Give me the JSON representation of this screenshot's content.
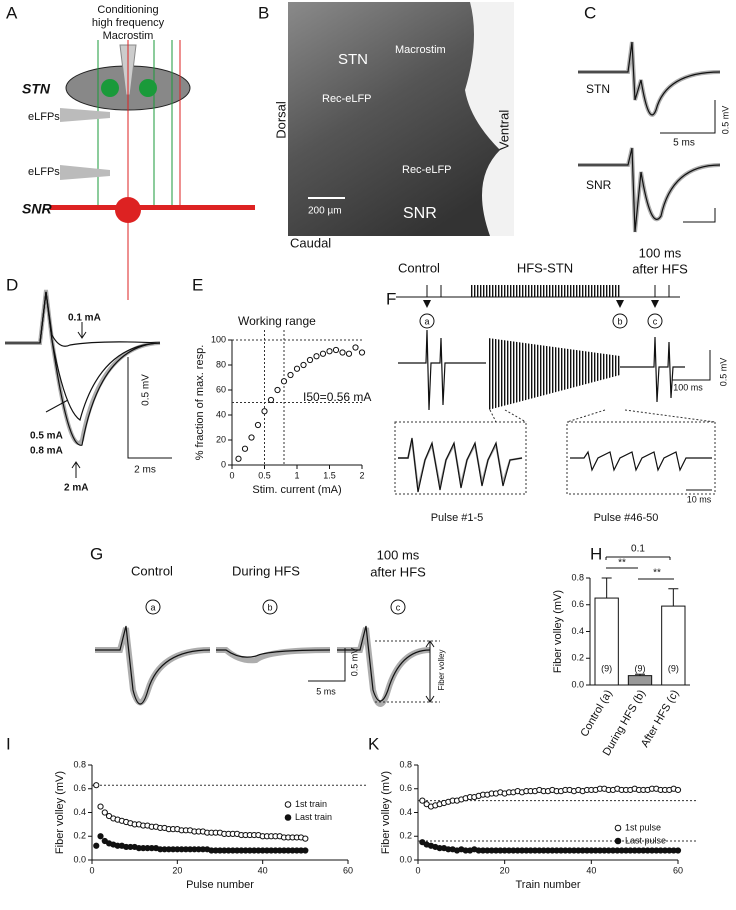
{
  "panels": {
    "A": {
      "label": "A",
      "title": [
        "Conditioning",
        "high frequency",
        "Macrostim"
      ],
      "stn": "STN",
      "elfp1": "eLFPs",
      "elfp2": "eLFPs",
      "snr": "SNR"
    },
    "B": {
      "label": "B",
      "stn": "STN",
      "macrostim": "Macrostim",
      "rec1": "Rec-eLFP",
      "dorsal": "Dorsal",
      "ventral": "Ventral",
      "rec2": "Rec-eLFP",
      "scale": "200 µm",
      "snr": "SNR",
      "caudal": "Caudal"
    },
    "C": {
      "label": "C",
      "stn": "STN",
      "mv": "0.5 mV",
      "ms": "5 ms",
      "snr": "SNR"
    },
    "D": {
      "label": "D",
      "i1": "0.1 mA",
      "i2": "0.5 mA",
      "i3": "0.8 mA",
      "i4": "2 mA",
      "mv": "0.5 mV",
      "ms": "2 ms"
    },
    "E": {
      "label": "E",
      "working": "Working range",
      "i50": "I50=0.56 mA"
    },
    "F": {
      "label": "F",
      "control": "Control",
      "hfs": "HFS-STN",
      "after": [
        "100 ms",
        "after HFS"
      ],
      "a": "a",
      "b": "b",
      "c": "c",
      "mv": "0.5 mV",
      "ms": "100 ms",
      "pulse1": "Pulse #1-5",
      "pulse2": "Pulse #46-50",
      "ms2": "10 ms"
    },
    "G": {
      "label": "G",
      "control": "Control",
      "during": "During HFS",
      "after": [
        "100 ms",
        "after HFS"
      ],
      "a": "a",
      "b": "b",
      "c": "c",
      "mv": "0.5 mV",
      "ms": "5 ms",
      "fv": "Fiber volley"
    },
    "H": {
      "label": "H",
      "p": "0.1",
      "s1": "**",
      "s2": "**"
    },
    "I": {
      "label": "I"
    },
    "K": {
      "label": "K"
    }
  },
  "chart_data": [
    {
      "type": "scatter",
      "xlabel": "Stim. current (mA)",
      "ylabel": "% fraction of max. resp.",
      "x": [
        0.1,
        0.2,
        0.3,
        0.4,
        0.5,
        0.6,
        0.7,
        0.8,
        0.9,
        1.0,
        1.1,
        1.2,
        1.3,
        1.4,
        1.5,
        1.6,
        1.7,
        1.8,
        1.9,
        2.0
      ],
      "series": [
        {
          "color": "#111",
          "marker": "open",
          "values": [
            5,
            13,
            22,
            32,
            43,
            52,
            60,
            67,
            72,
            77,
            80,
            84,
            87,
            89,
            91,
            92,
            90,
            89,
            94,
            90
          ]
        }
      ],
      "xlim": [
        0,
        2
      ],
      "xticks": [
        0,
        0.5,
        1,
        1.5,
        2
      ],
      "ylim": [
        0,
        100
      ],
      "yticks": [
        0,
        20,
        40,
        60,
        80,
        100
      ],
      "hlines": [
        50,
        100
      ],
      "vlines": [
        0.5,
        0.8
      ]
    },
    {
      "type": "bar",
      "ylabel": "Fiber volley (mV)",
      "categories": [
        "Control (a)",
        "During HFS (b)",
        "After HFS (c)"
      ],
      "values": [
        0.65,
        0.07,
        0.59
      ],
      "errors": [
        0.15,
        0.01,
        0.13
      ],
      "colors": [
        "#ffffff",
        "#999999",
        "#ffffff"
      ],
      "n_labels": [
        "(9)",
        "(9)",
        "(9)"
      ],
      "ylim": [
        0,
        0.8
      ],
      "yticks": [
        {
          "value": 0,
          "label": "0.0"
        },
        0.2,
        0.4,
        0.6,
        0.8
      ]
    },
    {
      "type": "scatter",
      "xlabel": "Pulse number",
      "ylabel": "Fiber volley (mV)",
      "legend": "right",
      "x": [
        1,
        2,
        3,
        4,
        5,
        6,
        7,
        8,
        9,
        10,
        11,
        12,
        13,
        14,
        15,
        16,
        17,
        18,
        19,
        20,
        21,
        22,
        23,
        24,
        25,
        26,
        27,
        28,
        29,
        30,
        31,
        32,
        33,
        34,
        35,
        36,
        37,
        38,
        39,
        40,
        41,
        42,
        43,
        44,
        45,
        46,
        47,
        48,
        49,
        50
      ],
      "series": [
        {
          "name": "1st train",
          "color": "#111",
          "marker": "open",
          "values": [
            0.63,
            0.45,
            0.4,
            0.37,
            0.35,
            0.34,
            0.33,
            0.32,
            0.31,
            0.3,
            0.3,
            0.29,
            0.29,
            0.28,
            0.28,
            0.27,
            0.27,
            0.26,
            0.26,
            0.26,
            0.25,
            0.25,
            0.25,
            0.24,
            0.24,
            0.24,
            0.23,
            0.23,
            0.23,
            0.23,
            0.22,
            0.22,
            0.22,
            0.22,
            0.21,
            0.21,
            0.21,
            0.21,
            0.21,
            0.2,
            0.2,
            0.2,
            0.2,
            0.2,
            0.19,
            0.19,
            0.19,
            0.19,
            0.19,
            0.18
          ]
        },
        {
          "name": "Last train",
          "color": "#111",
          "marker": "filled",
          "values": [
            0.12,
            0.2,
            0.16,
            0.14,
            0.13,
            0.12,
            0.12,
            0.11,
            0.11,
            0.11,
            0.1,
            0.1,
            0.1,
            0.1,
            0.1,
            0.09,
            0.09,
            0.09,
            0.09,
            0.09,
            0.09,
            0.09,
            0.09,
            0.09,
            0.09,
            0.09,
            0.09,
            0.08,
            0.08,
            0.08,
            0.08,
            0.08,
            0.08,
            0.08,
            0.08,
            0.08,
            0.08,
            0.08,
            0.08,
            0.08,
            0.08,
            0.08,
            0.08,
            0.08,
            0.08,
            0.08,
            0.08,
            0.08,
            0.08,
            0.08
          ]
        }
      ],
      "xlim": [
        0,
        60
      ],
      "xticks": [
        0,
        20,
        40,
        60
      ],
      "ylim": [
        0,
        0.8
      ],
      "yticks": [
        {
          "value": 0,
          "label": "0.0"
        },
        0.2,
        0.4,
        0.6,
        0.8
      ],
      "hlines": [
        0.63
      ]
    },
    {
      "type": "scatter",
      "xlabel": "Train number",
      "ylabel": "Fiber volley (mV)",
      "legend": "lower right",
      "x": [
        1,
        2,
        3,
        4,
        5,
        6,
        7,
        8,
        9,
        10,
        11,
        12,
        13,
        14,
        15,
        16,
        17,
        18,
        19,
        20,
        21,
        22,
        23,
        24,
        25,
        26,
        27,
        28,
        29,
        30,
        31,
        32,
        33,
        34,
        35,
        36,
        37,
        38,
        39,
        40,
        41,
        42,
        43,
        44,
        45,
        46,
        47,
        48,
        49,
        50,
        51,
        52,
        53,
        54,
        55,
        56,
        57,
        58,
        59,
        60
      ],
      "series": [
        {
          "name": "1st pulse",
          "color": "#111",
          "marker": "open",
          "values": [
            0.5,
            0.47,
            0.45,
            0.46,
            0.47,
            0.48,
            0.49,
            0.5,
            0.5,
            0.51,
            0.52,
            0.53,
            0.53,
            0.54,
            0.55,
            0.55,
            0.56,
            0.56,
            0.57,
            0.56,
            0.57,
            0.57,
            0.58,
            0.57,
            0.58,
            0.58,
            0.58,
            0.59,
            0.58,
            0.58,
            0.59,
            0.58,
            0.58,
            0.59,
            0.59,
            0.58,
            0.59,
            0.58,
            0.59,
            0.59,
            0.59,
            0.6,
            0.6,
            0.59,
            0.59,
            0.6,
            0.59,
            0.59,
            0.59,
            0.6,
            0.59,
            0.59,
            0.59,
            0.6,
            0.6,
            0.59,
            0.59,
            0.59,
            0.6,
            0.59
          ]
        },
        {
          "name": "Last pulse",
          "color": "#111",
          "marker": "filled",
          "values": [
            0.15,
            0.13,
            0.12,
            0.11,
            0.1,
            0.1,
            0.09,
            0.09,
            0.08,
            0.09,
            0.08,
            0.08,
            0.09,
            0.08,
            0.08,
            0.08,
            0.08,
            0.08,
            0.08,
            0.08,
            0.08,
            0.08,
            0.08,
            0.08,
            0.08,
            0.08,
            0.08,
            0.08,
            0.08,
            0.08,
            0.08,
            0.08,
            0.08,
            0.08,
            0.08,
            0.08,
            0.08,
            0.08,
            0.08,
            0.08,
            0.08,
            0.08,
            0.08,
            0.08,
            0.08,
            0.08,
            0.08,
            0.08,
            0.08,
            0.08,
            0.08,
            0.08,
            0.08,
            0.08,
            0.08,
            0.08,
            0.08,
            0.08,
            0.08,
            0.08
          ]
        }
      ],
      "xlim": [
        0,
        60
      ],
      "xticks": [
        0,
        20,
        40,
        60
      ],
      "ylim": [
        0,
        0.8
      ],
      "yticks": [
        {
          "value": 0,
          "label": "0.0"
        },
        0.2,
        0.4,
        0.6,
        0.8
      ],
      "hlines": [
        0.5,
        0.16
      ]
    }
  ]
}
